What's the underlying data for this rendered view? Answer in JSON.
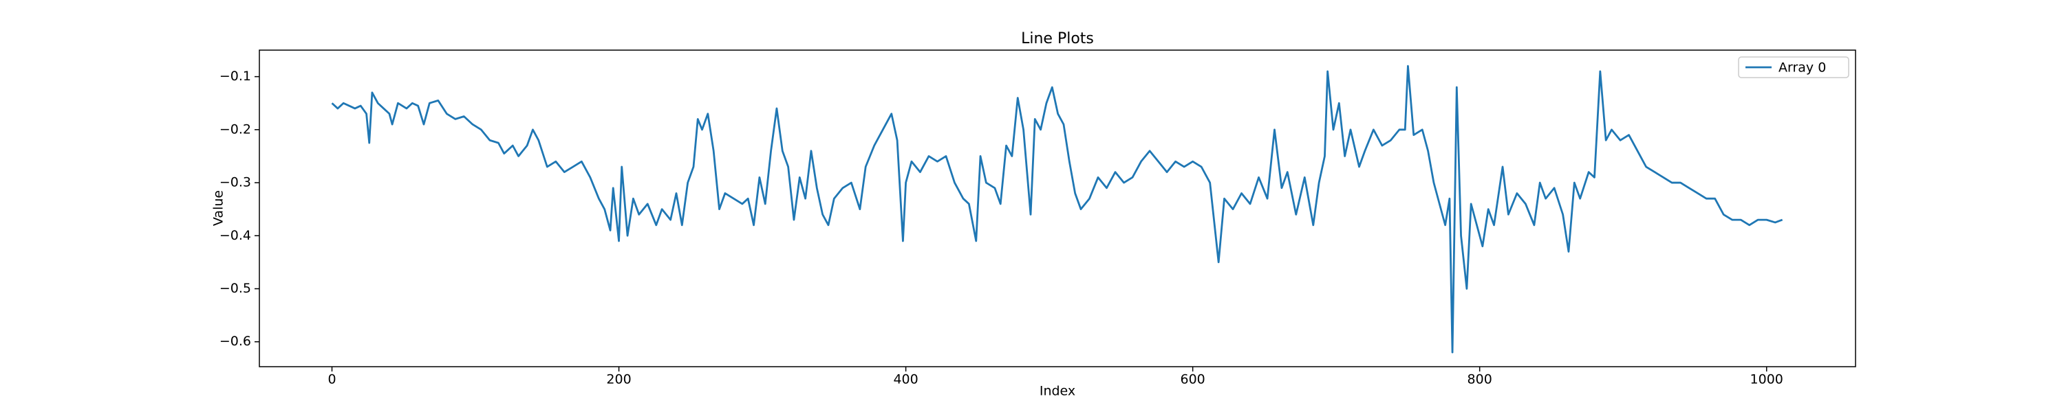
{
  "chart_data": {
    "type": "line",
    "title": "Line Plots",
    "x_label": "Index",
    "y_label": "Value",
    "x": [
      0,
      4,
      8,
      12,
      16,
      20,
      24,
      26,
      28,
      32,
      36,
      40,
      42,
      46,
      52,
      56,
      60,
      64,
      68,
      74,
      80,
      86,
      92,
      98,
      104,
      110,
      116,
      120,
      126,
      130,
      136,
      140,
      144,
      150,
      156,
      162,
      168,
      174,
      180,
      186,
      190,
      194,
      196,
      200,
      202,
      206,
      210,
      214,
      220,
      226,
      230,
      236,
      240,
      244,
      248,
      252,
      255,
      258,
      262,
      266,
      270,
      274,
      280,
      286,
      290,
      294,
      298,
      302,
      306,
      310,
      314,
      318,
      322,
      326,
      330,
      334,
      338,
      342,
      346,
      350,
      356,
      362,
      368,
      372,
      378,
      384,
      390,
      394,
      398,
      400,
      404,
      410,
      416,
      422,
      428,
      434,
      440,
      444,
      449,
      452,
      456,
      462,
      466,
      470,
      474,
      478,
      482,
      487,
      490,
      494,
      498,
      502,
      506,
      510,
      514,
      518,
      522,
      528,
      534,
      540,
      546,
      552,
      558,
      564,
      570,
      576,
      582,
      588,
      594,
      600,
      606,
      612,
      618,
      622,
      628,
      634,
      640,
      646,
      652,
      657,
      662,
      666,
      672,
      678,
      684,
      688,
      692,
      694,
      698,
      702,
      706,
      710,
      716,
      720,
      726,
      732,
      738,
      744,
      748,
      750,
      754,
      760,
      764,
      768,
      772,
      776,
      779,
      781,
      784,
      787,
      791,
      794,
      798,
      802,
      806,
      810,
      816,
      820,
      826,
      832,
      838,
      842,
      846,
      852,
      858,
      862,
      866,
      870,
      876,
      880,
      884,
      888,
      892,
      898,
      904,
      910,
      916,
      922,
      928,
      934,
      940,
      946,
      952,
      958,
      964,
      970,
      976,
      982,
      988,
      994,
      1000,
      1006,
      1011
    ],
    "series": [
      {
        "name": "Array 0",
        "color": "#1f77b4",
        "values": [
          -0.15,
          -0.16,
          -0.15,
          -0.155,
          -0.16,
          -0.155,
          -0.17,
          -0.225,
          -0.13,
          -0.15,
          -0.16,
          -0.17,
          -0.19,
          -0.15,
          -0.16,
          -0.15,
          -0.155,
          -0.19,
          -0.15,
          -0.145,
          -0.17,
          -0.18,
          -0.175,
          -0.19,
          -0.2,
          -0.22,
          -0.225,
          -0.245,
          -0.23,
          -0.25,
          -0.23,
          -0.2,
          -0.22,
          -0.27,
          -0.26,
          -0.28,
          -0.27,
          -0.26,
          -0.29,
          -0.33,
          -0.35,
          -0.39,
          -0.31,
          -0.41,
          -0.27,
          -0.4,
          -0.33,
          -0.36,
          -0.34,
          -0.38,
          -0.35,
          -0.37,
          -0.32,
          -0.38,
          -0.3,
          -0.27,
          -0.18,
          -0.2,
          -0.17,
          -0.24,
          -0.35,
          -0.32,
          -0.33,
          -0.34,
          -0.33,
          -0.38,
          -0.29,
          -0.34,
          -0.24,
          -0.16,
          -0.24,
          -0.27,
          -0.37,
          -0.29,
          -0.33,
          -0.24,
          -0.31,
          -0.36,
          -0.38,
          -0.33,
          -0.31,
          -0.3,
          -0.35,
          -0.27,
          -0.23,
          -0.2,
          -0.17,
          -0.22,
          -0.41,
          -0.3,
          -0.26,
          -0.28,
          -0.25,
          -0.26,
          -0.25,
          -0.3,
          -0.33,
          -0.34,
          -0.41,
          -0.25,
          -0.3,
          -0.31,
          -0.34,
          -0.23,
          -0.25,
          -0.14,
          -0.2,
          -0.36,
          -0.18,
          -0.2,
          -0.15,
          -0.12,
          -0.17,
          -0.19,
          -0.26,
          -0.32,
          -0.35,
          -0.33,
          -0.29,
          -0.31,
          -0.28,
          -0.3,
          -0.29,
          -0.26,
          -0.24,
          -0.26,
          -0.28,
          -0.26,
          -0.27,
          -0.26,
          -0.27,
          -0.3,
          -0.45,
          -0.33,
          -0.35,
          -0.32,
          -0.34,
          -0.29,
          -0.33,
          -0.2,
          -0.31,
          -0.28,
          -0.36,
          -0.29,
          -0.38,
          -0.3,
          -0.25,
          -0.09,
          -0.2,
          -0.15,
          -0.25,
          -0.2,
          -0.27,
          -0.24,
          -0.2,
          -0.23,
          -0.22,
          -0.2,
          -0.2,
          -0.08,
          -0.21,
          -0.2,
          -0.24,
          -0.3,
          -0.34,
          -0.38,
          -0.33,
          -0.62,
          -0.12,
          -0.4,
          -0.5,
          -0.34,
          -0.38,
          -0.42,
          -0.35,
          -0.38,
          -0.27,
          -0.36,
          -0.32,
          -0.34,
          -0.38,
          -0.3,
          -0.33,
          -0.31,
          -0.36,
          -0.43,
          -0.3,
          -0.33,
          -0.28,
          -0.29,
          -0.09,
          -0.22,
          -0.2,
          -0.22,
          -0.21,
          -0.24,
          -0.27,
          -0.28,
          -0.29,
          -0.3,
          -0.3,
          -0.31,
          -0.32,
          -0.33,
          -0.33,
          -0.36,
          -0.37,
          -0.37,
          -0.38,
          -0.37,
          -0.37,
          -0.375,
          -0.37
        ]
      }
    ],
    "xlim": [
      -50.6,
      1062
    ],
    "xticks": [
      0,
      200,
      400,
      600,
      800,
      1000
    ],
    "ylim": [
      -0.647,
      -0.05
    ],
    "yticks": [
      {
        "value": -0.6,
        "label": "−0.6"
      },
      {
        "value": -0.5,
        "label": "−0.5"
      },
      {
        "value": -0.4,
        "label": "−0.4"
      },
      {
        "value": -0.3,
        "label": "−0.3"
      },
      {
        "value": -0.2,
        "label": "−0.2"
      },
      {
        "value": -0.1,
        "label": "−0.1"
      }
    ],
    "legend": "upper right",
    "grid": false
  }
}
